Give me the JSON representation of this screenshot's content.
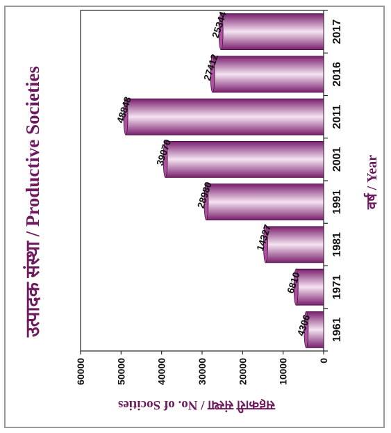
{
  "chart_data": {
    "type": "bar",
    "orientation": "vertical bars, page rotated 90 degrees clockwise",
    "title": "उत्पादक संस्था / Productive Societies",
    "xlabel": "वर्ष / Year",
    "ylabel": "सहकारी संस्था / No. of Socities",
    "categories": [
      "1961",
      "1971",
      "1981",
      "1991",
      "2001",
      "2011",
      "2016",
      "2017"
    ],
    "values": [
      4306,
      6810,
      14327,
      28980,
      39070,
      48848,
      27412,
      25344
    ],
    "data_labels": [
      "4306",
      "6810",
      "14327",
      "28980",
      "39070",
      "48848",
      "27412",
      "25344"
    ],
    "yticks": [
      "0",
      "10000",
      "20000",
      "30000",
      "40000",
      "50000",
      "60000"
    ],
    "ylim": [
      0,
      60000
    ],
    "grid": false,
    "legend": "none",
    "colors": {
      "bar_dark": "#7a1f6e",
      "bar_mid": "#b04fa4",
      "bar_light": "#f4e3f1",
      "title": "#6e1a5e",
      "axis_label": "#6e1a5e"
    }
  }
}
